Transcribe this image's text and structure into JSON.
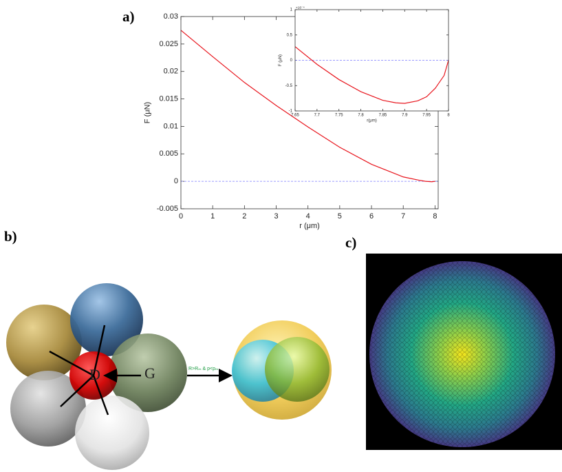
{
  "panels": {
    "a": "a)",
    "b": "b)",
    "c": "c)"
  },
  "diagram": {
    "center_label": "D",
    "neighbor_label": "G",
    "arrow_label": "R>Rₘ & p<pₘ"
  },
  "chart_data": [
    {
      "type": "line",
      "xlabel": "r (μm)",
      "ylabel": "F (μN)",
      "x": [
        0,
        1,
        2,
        3,
        4,
        5,
        6,
        7,
        7.5,
        7.7,
        7.9,
        8
      ],
      "series": [
        {
          "color": "#e8141c",
          "values": [
            0.0275,
            0.0227,
            0.018,
            0.0138,
            0.0099,
            0.0062,
            0.0031,
            0.0008,
            0.0002,
            0,
            -8e-05,
            0
          ]
        }
      ],
      "reference_line": 0,
      "xlim": [
        0,
        8.1
      ],
      "ylim": [
        -0.005,
        0.03
      ],
      "xticks": [
        0,
        1,
        2,
        3,
        4,
        5,
        6,
        7,
        8
      ],
      "yticks": [
        -0.005,
        0,
        0.005,
        0.01,
        0.015,
        0.02,
        0.025,
        0.03
      ]
    },
    {
      "type": "line",
      "xlabel": "r(μm)",
      "ylabel": "F (μN)",
      "y_multiplier": "×10⁻⁴",
      "x": [
        7.65,
        7.7,
        7.75,
        7.8,
        7.85,
        7.88,
        7.9,
        7.93,
        7.95,
        7.97,
        7.99,
        8
      ],
      "series": [
        {
          "color": "#e8141c",
          "values": [
            0.27,
            -0.08,
            -0.38,
            -0.62,
            -0.79,
            -0.84,
            -0.85,
            -0.8,
            -0.72,
            -0.55,
            -0.3,
            0
          ]
        }
      ],
      "reference_line": 0,
      "xlim": [
        7.65,
        8
      ],
      "ylim": [
        -1,
        1
      ],
      "xticks": [
        7.65,
        7.7,
        7.75,
        7.8,
        7.85,
        7.9,
        7.95,
        8
      ],
      "yticks": [
        -1,
        -0.5,
        0,
        0.5,
        1
      ]
    }
  ]
}
